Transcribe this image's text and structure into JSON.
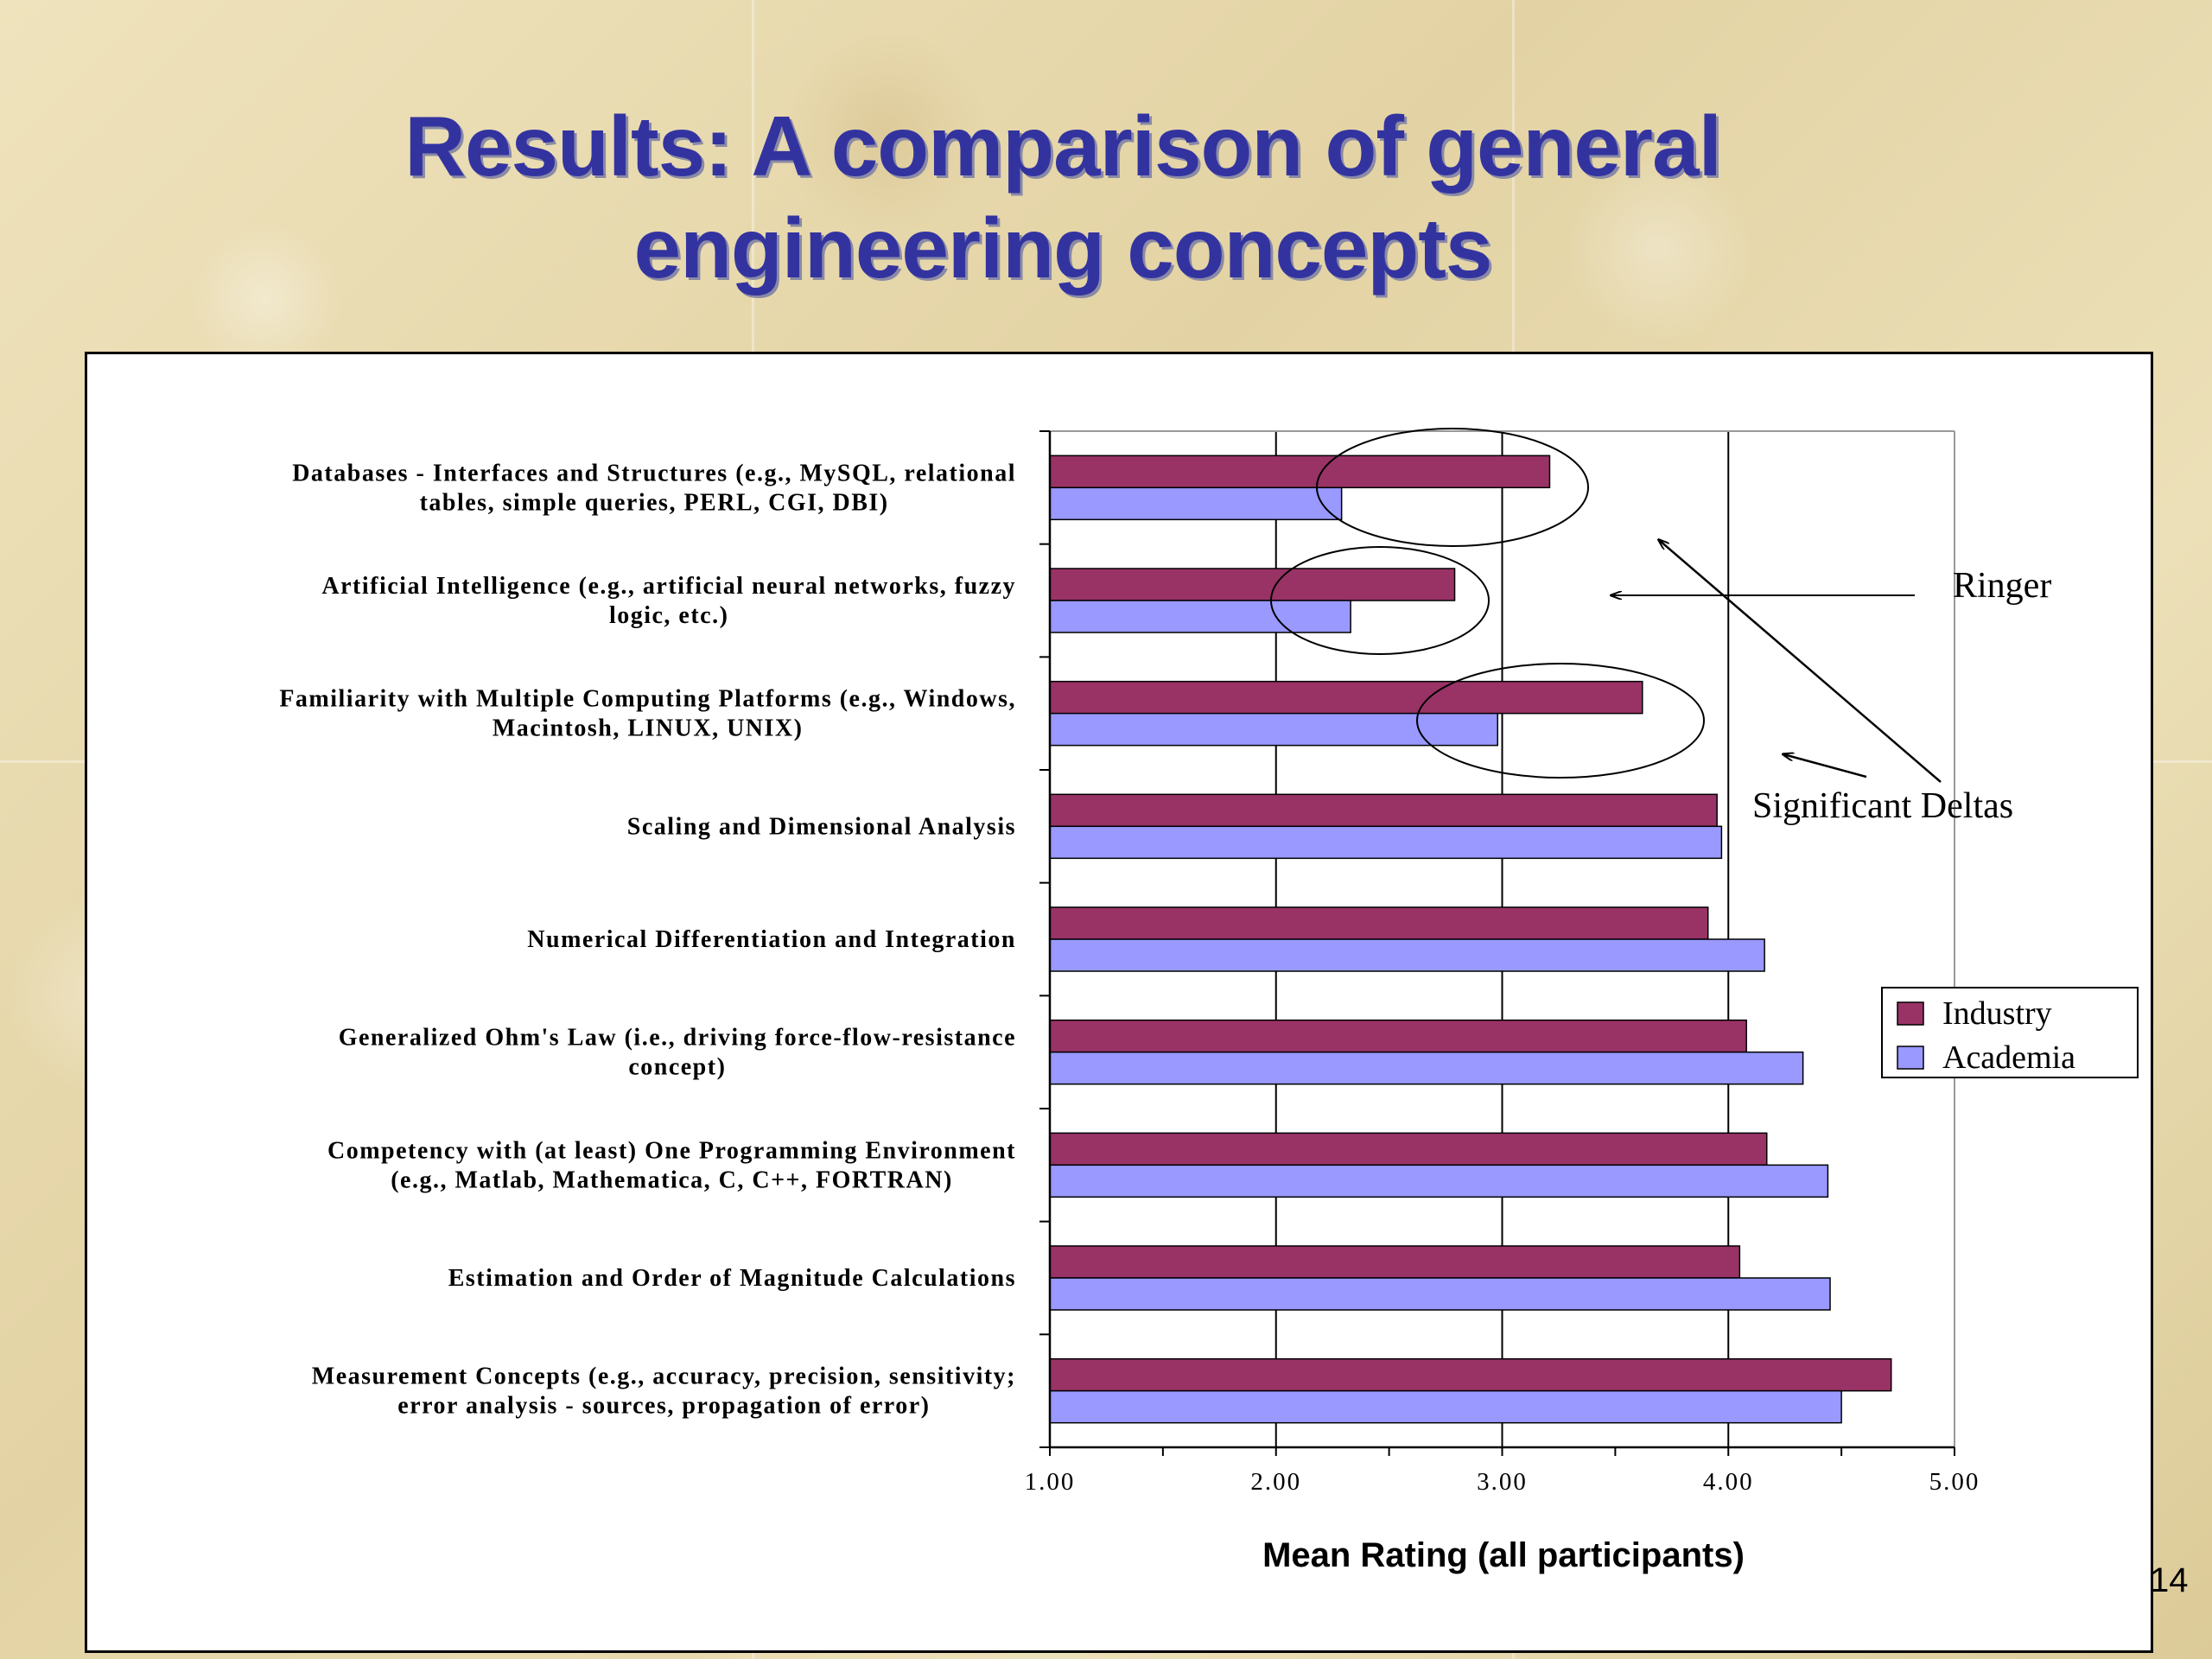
{
  "slide": {
    "title_line1": "Results: A comparison of general",
    "title_line2": "engineering concepts",
    "page_number": "14"
  },
  "colors": {
    "industry": "#993366",
    "academia": "#9999ff",
    "title": "#3333a0"
  },
  "chart_data": {
    "type": "bar",
    "orientation": "horizontal",
    "categories": [
      [
        "Databases - Interfaces and Structures (e.g., MySQL, relational",
        "tables, simple queries, PERL, CGI, DBI)"
      ],
      [
        "Artificial Intelligence (e.g., artificial neural networks, fuzzy",
        "logic, etc.)"
      ],
      [
        "Familiarity with Multiple Computing Platforms (e.g., Windows,",
        "Macintosh, LINUX, UNIX)"
      ],
      [
        "Scaling and Dimensional Analysis"
      ],
      [
        "Numerical Differentiation and Integration"
      ],
      [
        "Generalized Ohm's Law (i.e., driving force-flow-resistance",
        "concept)"
      ],
      [
        "Competency with (at least) One Programming Environment",
        "(e.g., Matlab, Mathematica, C, C++, FORTRAN)"
      ],
      [
        "Estimation and Order of Magnitude Calculations"
      ],
      [
        "Measurement Concepts (e.g., accuracy, precision, sensitivity;",
        "error analysis - sources, propagation of error)"
      ]
    ],
    "series": [
      {
        "name": "Industry",
        "values": [
          3.21,
          2.79,
          3.62,
          3.95,
          3.91,
          4.08,
          4.17,
          4.05,
          4.72
        ]
      },
      {
        "name": "Academia",
        "values": [
          2.29,
          2.33,
          2.98,
          3.97,
          4.16,
          4.33,
          4.44,
          4.45,
          4.5
        ]
      }
    ],
    "xlabel": "Mean Rating (all participants)",
    "xlim": [
      1.0,
      5.0
    ],
    "xticks": [
      "1.00",
      "2.00",
      "3.00",
      "4.00",
      "5.00"
    ],
    "xtick_values": [
      1,
      2,
      3,
      4,
      5
    ],
    "grid": "vertical major gridlines",
    "legend_position": "right",
    "annotations": [
      {
        "text": "Ringer"
      },
      {
        "text": "Significant Deltas"
      }
    ]
  }
}
